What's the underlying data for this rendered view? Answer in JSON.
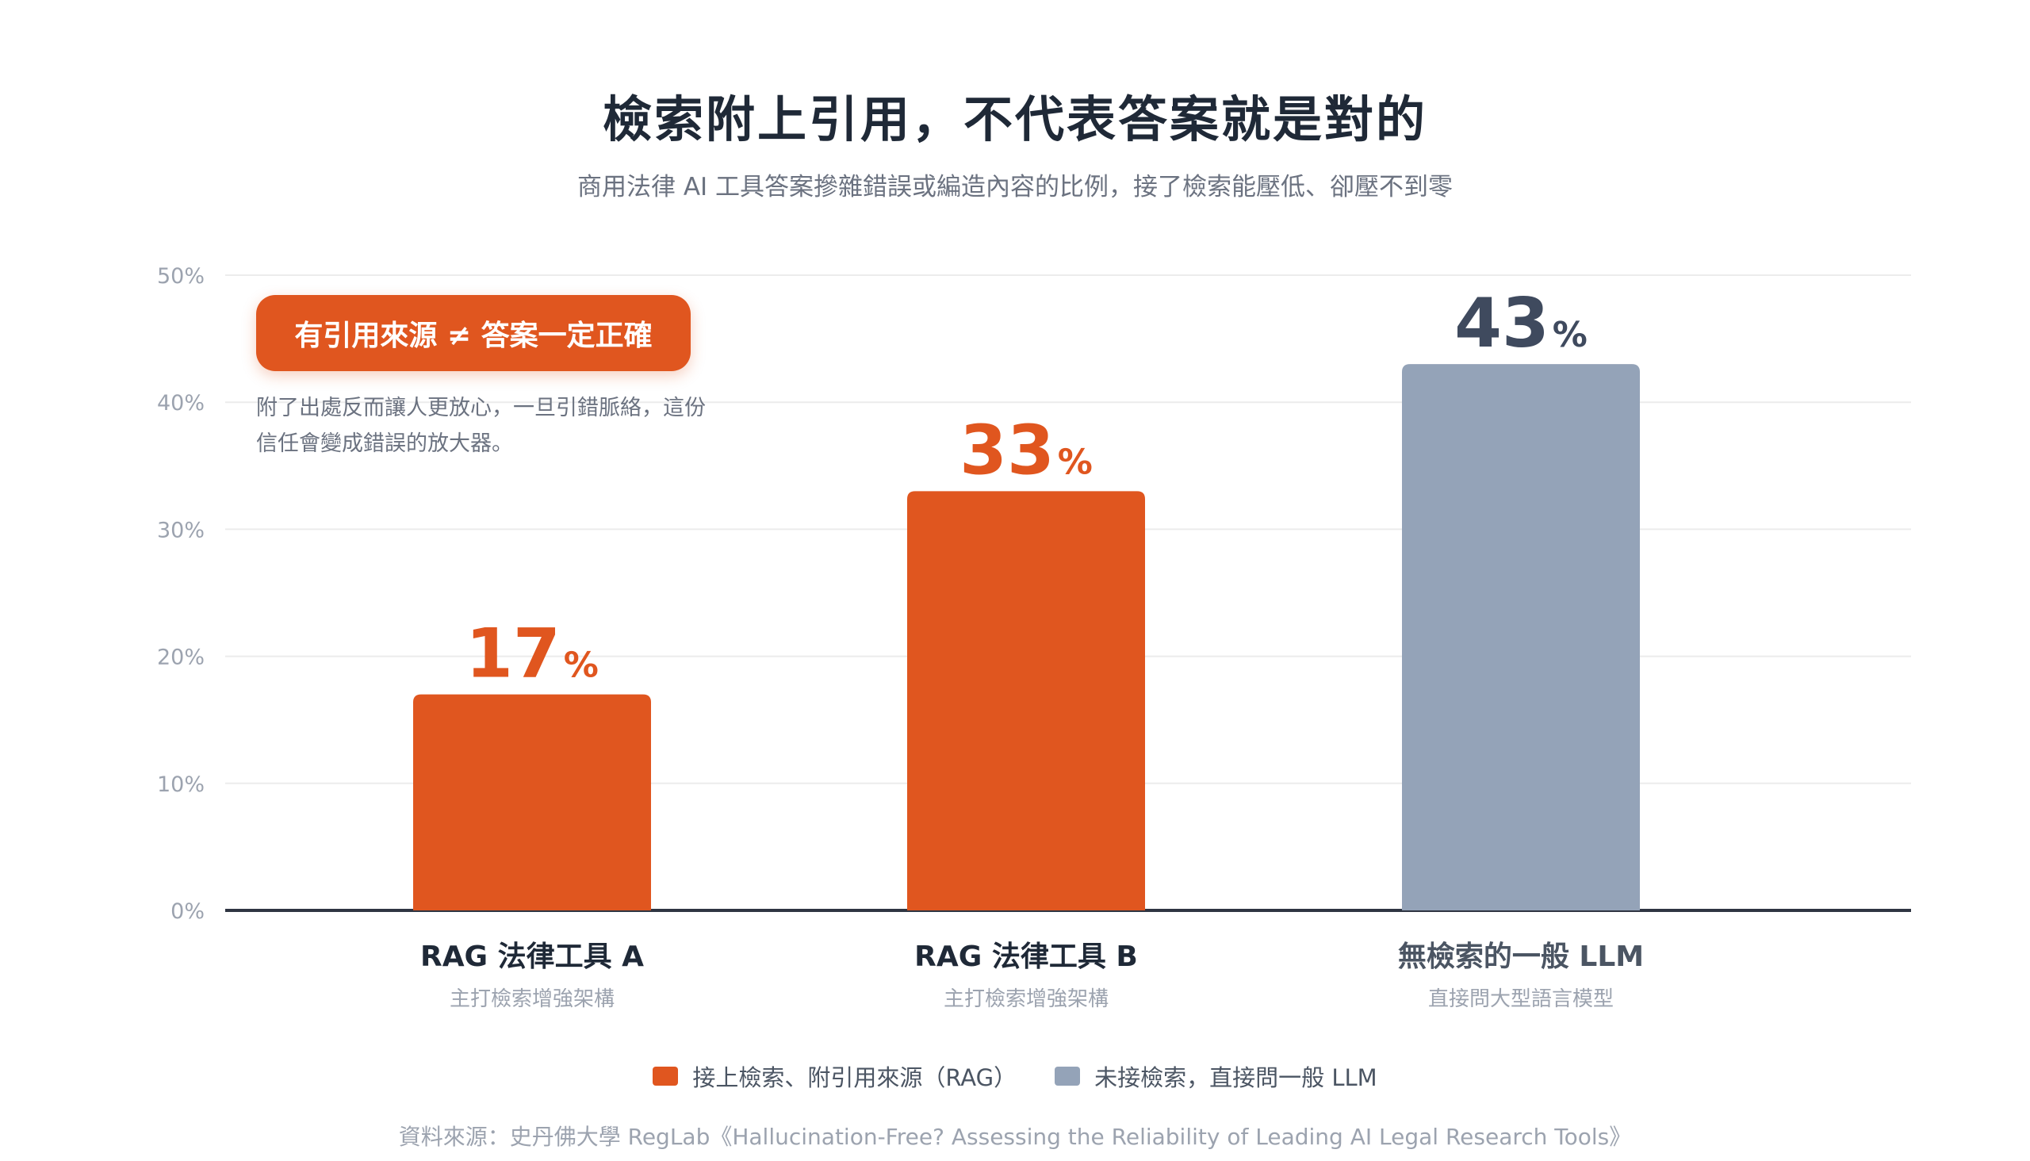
{
  "title": "檢索附上引用，不代表答案就是對的",
  "subtitle": "商用法律 AI 工具答案摻雜錯誤或編造內容的比例，接了檢索能壓低、卻壓不到零",
  "callout": {
    "label": "有引用來源 ≠ 答案一定正確",
    "note_line1": "附了出處反而讓人更放心，一旦引錯脈絡，這份",
    "note_line2": "信任會變成錯誤的放大器。"
  },
  "legend": [
    {
      "label": "接上檢索、附引用來源（RAG）",
      "color": "#e0561f"
    },
    {
      "label": "未接檢索，直接問一般 LLM",
      "color": "#94a3b8"
    }
  ],
  "source": "資料來源：史丹佛大學 RegLab《Hallucination-Free? Assessing the Reliability of Leading AI Legal Research Tools》",
  "chart_data": {
    "type": "bar",
    "categories": [
      "RAG 法律工具 A",
      "RAG 法律工具 B",
      "無檢索的一般 LLM"
    ],
    "category_sublabels": [
      "主打檢索增強架構",
      "主打檢索增強架構",
      "直接問大型語言模型"
    ],
    "values": [
      17,
      33,
      43
    ],
    "value_unit": "%",
    "bar_colors": [
      "#e0561f",
      "#e0561f",
      "#94a3b8"
    ],
    "value_label_colors": [
      "#e0561f",
      "#e0561f",
      "#3f4a5e"
    ],
    "ylim": [
      0,
      50
    ],
    "yticks": [
      0,
      10,
      20,
      30,
      40,
      50
    ],
    "ytick_labels": [
      "0%",
      "10%",
      "20%",
      "30%",
      "40%",
      "50%"
    ],
    "grid": true,
    "legend_position": "bottom"
  }
}
